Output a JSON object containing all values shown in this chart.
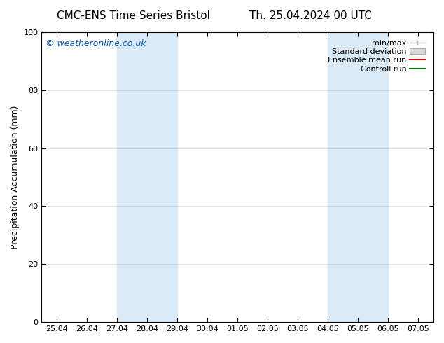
{
  "title_left": "CMC-ENS Time Series Bristol",
  "title_right": "Th. 25.04.2024 00 UTC",
  "ylabel": "Precipitation Accumulation (mm)",
  "ylim": [
    0,
    100
  ],
  "yticks": [
    0,
    20,
    40,
    60,
    80,
    100
  ],
  "background_color": "#ffffff",
  "plot_bg_color": "#ffffff",
  "band_color": "#daeaf7",
  "shaded_band_1_start": 2,
  "shaded_band_1_end": 4,
  "shaded_band_2_start": 9,
  "shaded_band_2_end": 11,
  "x_tick_labels": [
    "25.04",
    "26.04",
    "27.04",
    "28.04",
    "29.04",
    "30.04",
    "01.05",
    "02.05",
    "03.05",
    "04.05",
    "05.05",
    "06.05",
    "07.05"
  ],
  "x_tick_positions": [
    0,
    1,
    2,
    3,
    4,
    5,
    6,
    7,
    8,
    9,
    10,
    11,
    12
  ],
  "xlim": [
    -0.5,
    12.5
  ],
  "watermark_text": "© weatheronline.co.uk",
  "watermark_color": "#0055cc",
  "legend_labels": [
    "min/max",
    "Standard deviation",
    "Ensemble mean run",
    "Controll run"
  ],
  "legend_colors": [
    "#aaaaaa",
    "#cccccc",
    "#dd0000",
    "#007700"
  ],
  "font_size_title": 11,
  "font_size_ticks": 8,
  "font_size_ylabel": 9,
  "font_size_watermark": 9,
  "font_size_legend": 8,
  "grid_color": "#aaaaaa",
  "grid_alpha": 0.5,
  "grid_linewidth": 0.5
}
